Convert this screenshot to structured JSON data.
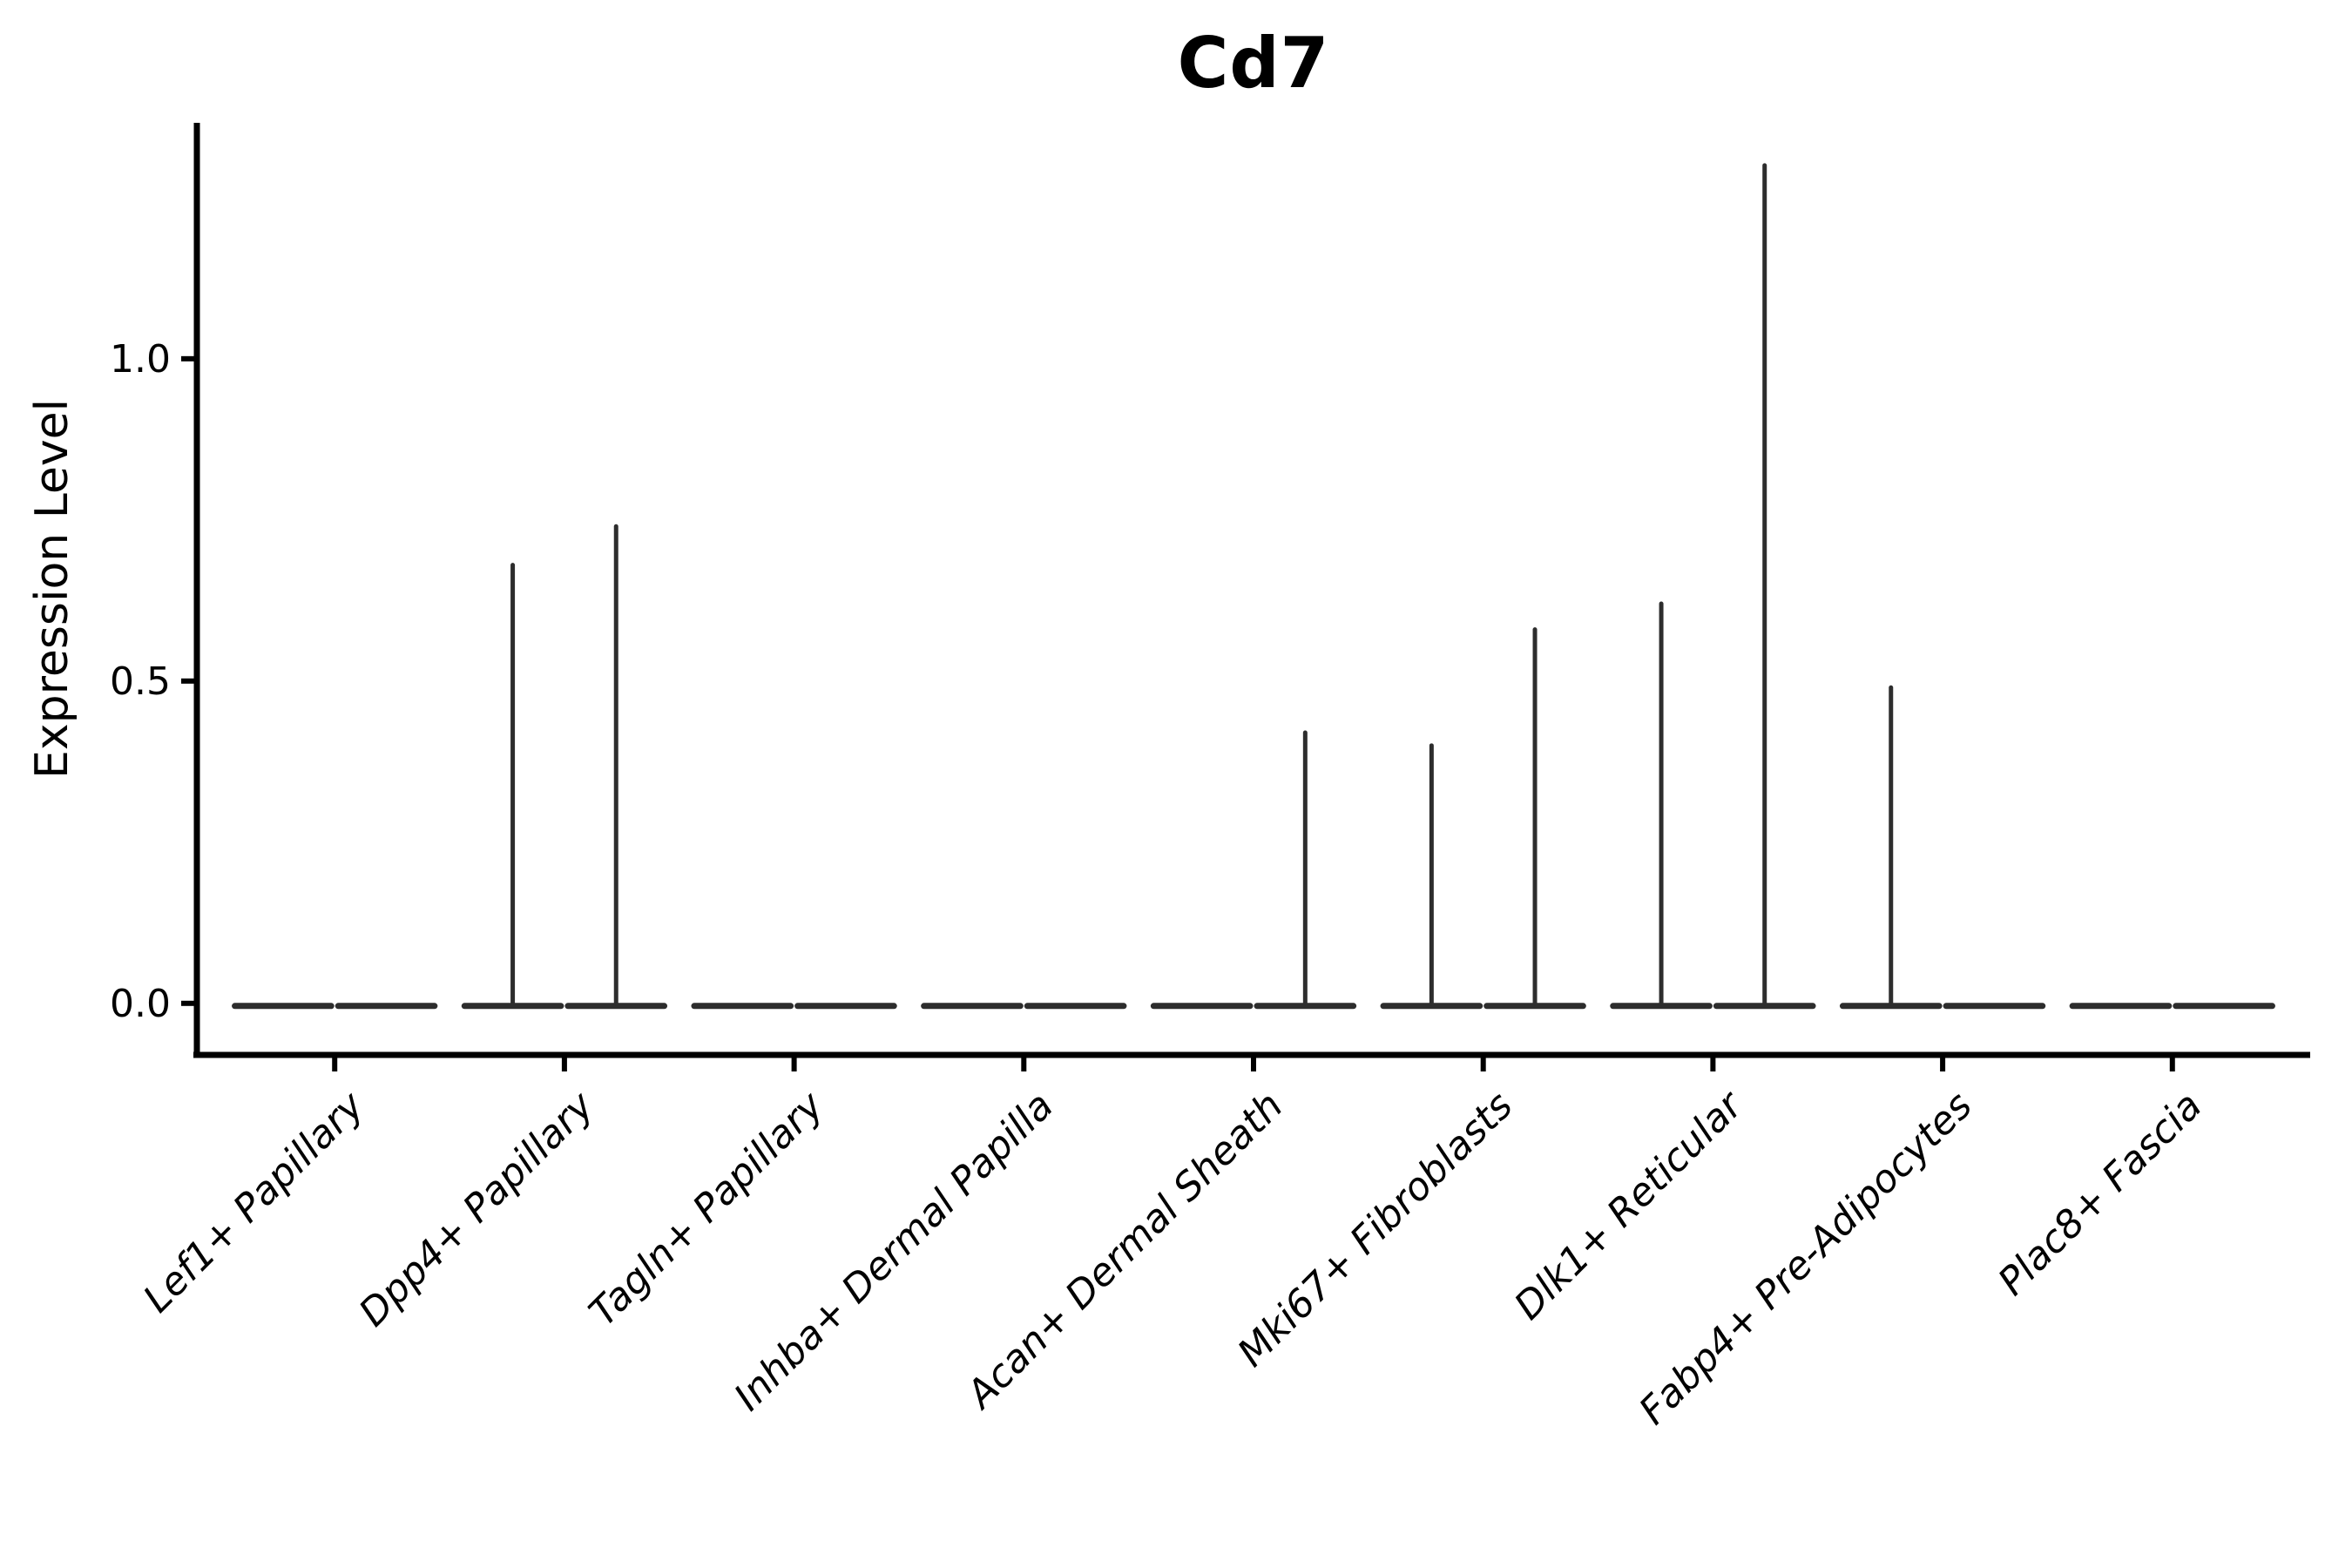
{
  "figure": {
    "background": "#ffffff"
  },
  "colors": {
    "axis": "#000000",
    "text": "#000000",
    "violin": "#2d2d2d"
  },
  "chart_data": {
    "type": "violin",
    "title": "Cd7",
    "xlabel": "",
    "ylabel": "Expression Level",
    "categories": [
      "Lef1+ Papillary",
      "Dpp4+ Papillary",
      "Tagln+ Papillary",
      "Inhba+ Dermal Papilla",
      "Acan+ Dermal Sheath",
      "Mki67+ Fibroblasts",
      "Dlk1+ Reticular",
      "Fabp4+ Pre-Adipocytes",
      "Plac8+ Fascia"
    ],
    "series": [
      {
        "name": "violin-left",
        "max_expression": [
          0,
          0.68,
          0,
          0,
          0,
          0.4,
          0.62,
          0.49,
          0
        ]
      },
      {
        "name": "violin-right",
        "max_expression": [
          0,
          0.74,
          0,
          0,
          0.42,
          0.58,
          1.3,
          0,
          0
        ]
      }
    ],
    "shape_note": "all violins collapsed flat at 0 with a narrow vertical spike up to max_expression when > 0",
    "baseline_value": 0,
    "yticks": {
      "values": [
        0.0,
        0.5,
        1.0
      ],
      "labels": [
        "0.0",
        "0.5",
        "1.0"
      ]
    },
    "ylim": [
      -0.08,
      1.366
    ],
    "x_padding_categories": 0.6,
    "dodge_width": 0.9,
    "violin_width": 0.45,
    "grid": false,
    "legend": "none",
    "x_tick_label_rotation_deg": 45,
    "x_tick_label_style": "italic"
  }
}
